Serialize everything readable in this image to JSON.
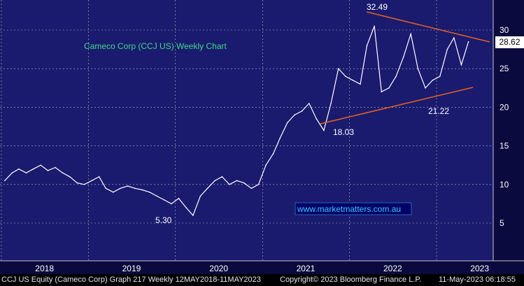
{
  "chart_data": {
    "type": "line",
    "title": "Cameco Corp  (CCJ US) Weekly Chart",
    "xlabel": "",
    "ylabel": "",
    "ylim": [
      0,
      35
    ],
    "yticks": [
      5,
      10,
      15,
      20,
      25,
      30
    ],
    "xticks": [
      "2018",
      "2019",
      "2020",
      "2021",
      "2022",
      "2023"
    ],
    "grid": true,
    "series": [
      {
        "x": [
          "2018-01",
          "2018-02",
          "2018-03",
          "2018-04",
          "2018-05",
          "2018-06",
          "2018-07",
          "2018-08",
          "2018-09",
          "2018-10",
          "2018-11",
          "2018-12",
          "2019-01",
          "2019-02",
          "2019-03",
          "2019-04",
          "2019-05",
          "2019-06",
          "2019-07",
          "2019-08",
          "2019-09",
          "2019-10",
          "2019-11",
          "2019-12",
          "2020-01",
          "2020-02",
          "2020-03",
          "2020-04",
          "2020-05",
          "2020-06",
          "2020-07",
          "2020-08",
          "2020-09",
          "2020-10",
          "2020-11",
          "2020-12",
          "2021-01",
          "2021-02",
          "2021-03",
          "2021-04",
          "2021-05",
          "2021-06",
          "2021-07",
          "2021-08",
          "2021-09",
          "2021-10",
          "2021-11",
          "2021-12",
          "2022-01",
          "2022-02",
          "2022-03",
          "2022-04",
          "2022-05",
          "2022-06",
          "2022-07",
          "2022-08",
          "2022-09",
          "2022-10",
          "2022-11",
          "2022-12",
          "2023-01",
          "2023-02",
          "2023-03",
          "2023-04",
          "2023-05"
        ],
        "values": [
          10.5,
          11.5,
          12.0,
          11.5,
          12.0,
          12.5,
          11.8,
          12.2,
          11.5,
          11.0,
          10.2,
          10.0,
          10.5,
          11.0,
          9.5,
          9.0,
          9.5,
          9.8,
          9.5,
          9.3,
          9.0,
          8.5,
          8.0,
          7.5,
          8.2,
          7.0,
          6.0,
          8.5,
          9.5,
          10.5,
          11.0,
          10.0,
          10.5,
          10.2,
          9.5,
          10.0,
          12.5,
          14.0,
          16.0,
          18.0,
          19.0,
          19.5,
          20.5,
          18.5,
          17.0,
          20.5,
          25.0,
          24.0,
          23.5,
          23.0,
          28.0,
          30.5,
          22.0,
          22.5,
          24.0,
          26.5,
          29.5,
          25.0,
          22.5,
          23.5,
          24.0,
          27.5,
          29.0,
          25.5,
          28.5
        ]
      }
    ],
    "annotations": [
      "32.49",
      "18.03",
      "21.22",
      "5.30",
      "28.62"
    ],
    "watermark": "www.marketmatters.com.au",
    "last_price": "28.62",
    "colors": {
      "background": "#1a1a6e",
      "price": "#ffffff",
      "trendline": "#e8641e",
      "title": "#3ddc84",
      "grid": "#ffffff",
      "watermark": "#3fc8ff"
    }
  },
  "footer": {
    "left": "CCJ US Equity (Cameco Corp) Graph 217  Weekly 12MAY2018-11MAY2023",
    "middle": "Copyright© 2023 Bloomberg Finance L.P.",
    "right": "11-May-2023 06:18:55"
  }
}
